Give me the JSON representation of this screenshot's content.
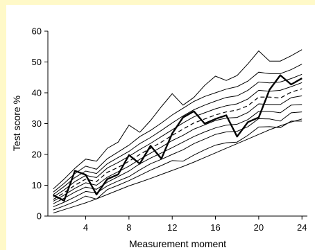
{
  "chart_data": {
    "type": "line",
    "title": "",
    "xlabel": "Measurement moment",
    "ylabel": "Test score %",
    "xlim": [
      0.5,
      24.5
    ],
    "ylim": [
      0,
      60
    ],
    "x_ticks": [
      4,
      8,
      12,
      16,
      20,
      24
    ],
    "y_ticks": [
      0,
      10,
      20,
      30,
      40,
      50,
      60
    ],
    "grid": false,
    "x": [
      1,
      2,
      3,
      4,
      5,
      6,
      7,
      8,
      9,
      10,
      11,
      12,
      13,
      14,
      15,
      16,
      17,
      18,
      19,
      20,
      21,
      22,
      23,
      24
    ],
    "percentile_series": [
      {
        "values": [
          1.0,
          2.1,
          3.2,
          4.3,
          5.6,
          7.0,
          8.4,
          9.8,
          11.0,
          12.2,
          13.5,
          14.8,
          16.1,
          17.5,
          19.0,
          20.5,
          22.0,
          23.5,
          25.0,
          26.5,
          28.0,
          29.3,
          30.5,
          31.5
        ]
      },
      {
        "values": [
          2.0,
          3.3,
          4.7,
          6.5,
          5.5,
          8.6,
          10.0,
          11.5,
          13.2,
          14.9,
          16.4,
          18.0,
          17.8,
          19.8,
          21.5,
          23.0,
          23.8,
          24.0,
          26.2,
          28.9,
          29.0,
          28.7,
          30.8,
          30.8
        ]
      },
      {
        "values": [
          3.0,
          4.5,
          6.2,
          8.0,
          7.5,
          9.8,
          11.4,
          12.8,
          15.0,
          17.0,
          18.4,
          20.0,
          21.5,
          23.5,
          25.0,
          26.5,
          27.3,
          27.5,
          29.0,
          31.6,
          31.5,
          30.8,
          33.5,
          33.8
        ]
      },
      {
        "values": [
          4.0,
          5.8,
          7.8,
          9.4,
          8.7,
          11.0,
          12.8,
          14.6,
          17.0,
          18.8,
          20.5,
          22.2,
          24.0,
          25.8,
          27.3,
          28.6,
          29.5,
          29.8,
          31.3,
          34.0,
          34.0,
          33.5,
          36.0,
          36.2
        ]
      },
      {
        "values": [
          4.8,
          6.8,
          9.0,
          10.8,
          10.0,
          12.6,
          14.4,
          16.2,
          18.4,
          20.4,
          22.4,
          24.5,
          26.2,
          28.2,
          29.6,
          31.0,
          31.8,
          32.0,
          33.6,
          36.4,
          36.2,
          36.2,
          38.4,
          39.0
        ]
      },
      {
        "values": [
          5.4,
          7.6,
          10.0,
          12.0,
          11.2,
          14.2,
          15.8,
          17.8,
          20.0,
          22.0,
          24.0,
          26.2,
          28.2,
          30.2,
          31.5,
          32.8,
          33.8,
          34.4,
          35.8,
          38.6,
          38.6,
          38.3,
          40.2,
          41.3
        ]
      },
      {
        "values": [
          6.2,
          8.5,
          11.2,
          13.2,
          12.5,
          15.6,
          17.4,
          19.4,
          21.6,
          23.6,
          25.8,
          28.0,
          30.2,
          32.2,
          33.5,
          34.8,
          35.8,
          36.4,
          38.0,
          40.8,
          40.5,
          40.8,
          42.0,
          43.3
        ]
      },
      {
        "values": [
          7.0,
          9.6,
          12.5,
          14.6,
          13.8,
          17.0,
          19.0,
          21.0,
          23.5,
          25.5,
          27.8,
          30.2,
          32.5,
          34.5,
          36.0,
          37.3,
          38.5,
          39.0,
          40.8,
          43.5,
          43.2,
          43.5,
          44.6,
          46.0
        ]
      },
      {
        "values": [
          7.8,
          10.6,
          13.8,
          16.2,
          15.2,
          18.6,
          20.8,
          23.0,
          25.8,
          27.8,
          30.2,
          32.8,
          35.0,
          37.2,
          38.8,
          40.0,
          41.2,
          42.0,
          43.8,
          46.7,
          46.2,
          46.2,
          47.5,
          49.3
        ]
      },
      {
        "values": [
          8.8,
          12.0,
          15.5,
          18.5,
          17.8,
          22.0,
          24.0,
          29.5,
          27.2,
          31.0,
          35.5,
          39.7,
          36.0,
          38.5,
          42.4,
          45.4,
          44.0,
          45.6,
          49.4,
          53.6,
          50.3,
          50.3,
          52.0,
          54.0
        ]
      }
    ],
    "median_series": {
      "values": [
        5.4,
        7.6,
        10.0,
        12.0,
        11.2,
        14.2,
        15.8,
        17.8,
        20.0,
        22.0,
        24.0,
        26.2,
        28.2,
        30.2,
        31.5,
        32.8,
        33.8,
        34.4,
        35.8,
        38.6,
        38.6,
        38.3,
        40.2,
        41.3
      ]
    },
    "student_series": {
      "values": [
        6.8,
        5.0,
        14.7,
        13.4,
        7.0,
        12.0,
        13.5,
        19.8,
        17.0,
        22.8,
        18.6,
        26.8,
        32.0,
        34.0,
        30.0,
        31.5,
        32.7,
        25.8,
        30.5,
        32.0,
        41.0,
        45.7,
        42.7,
        44.7
      ]
    },
    "colors": {
      "background_strip": "#fff9c8",
      "band_lines": "#000000",
      "median_line": "#000000",
      "student_line": "#000000"
    }
  }
}
